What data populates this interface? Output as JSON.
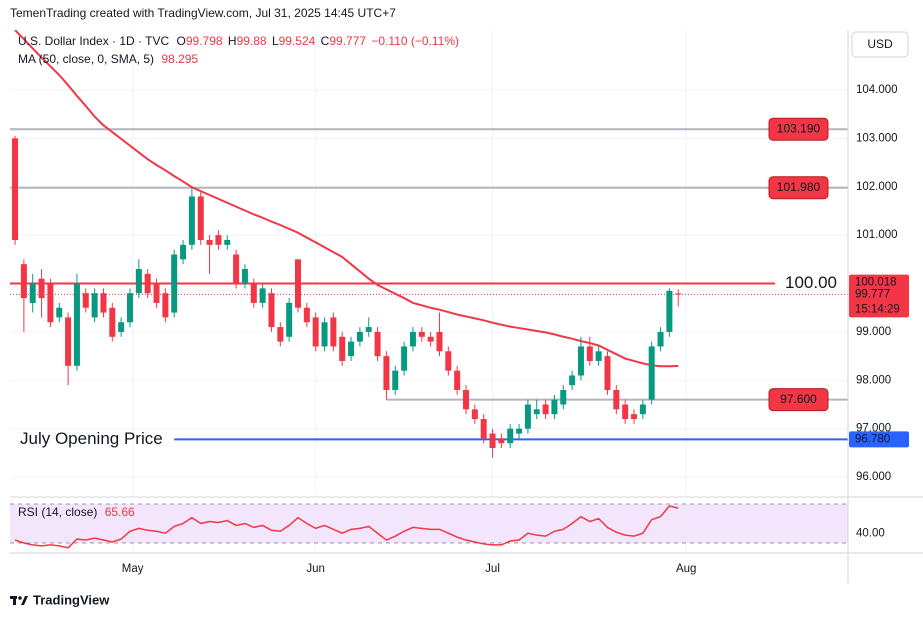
{
  "header": "TemenTrading created with TradingView.com, Jul 31, 2025 14:45 UTC+7",
  "footer": "TradingView",
  "chart_data": {
    "type": "candlestick",
    "title": "U.S. Dollar Index · 1D · TVC",
    "currency": "USD",
    "ohlc_labels": [
      "O",
      "H",
      "L",
      "C"
    ],
    "last": {
      "open": 99.798,
      "high": 99.88,
      "low": 99.524,
      "close": 99.777,
      "change": "−0.110 (−0.11%)"
    },
    "open": [
      103.0,
      100.4,
      99.6,
      100.1,
      100.0,
      99.3,
      99.3,
      98.3,
      99.8,
      99.3,
      99.8,
      99.5,
      99.0,
      99.2,
      99.8,
      100.2,
      100.0,
      99.8,
      99.4,
      100.5,
      100.8,
      101.8,
      100.9,
      101.0,
      100.8,
      100.6,
      100.0,
      100.0,
      99.6,
      99.8,
      99.1,
      98.9,
      100.5,
      99.5,
      99.3,
      98.7,
      99.3,
      98.9,
      98.5,
      98.8,
      99.0,
      99.0,
      98.5,
      97.8,
      98.2,
      98.7,
      99.0,
      98.9,
      99.0,
      98.6,
      98.2,
      97.8,
      97.4,
      97.2,
      96.9,
      96.8,
      96.7,
      96.9,
      97.0,
      97.3,
      97.5,
      97.3,
      97.5,
      97.9,
      98.1,
      98.7,
      98.4,
      98.5,
      97.8,
      97.5,
      97.3,
      97.3,
      97.6,
      98.7,
      99.0,
      99.798
    ],
    "high": [
      103.05,
      100.5,
      100.2,
      100.3,
      100.1,
      99.6,
      99.4,
      100.2,
      99.9,
      99.9,
      99.9,
      99.6,
      99.3,
      99.9,
      100.5,
      100.3,
      100.1,
      99.9,
      100.7,
      100.9,
      102.0,
      101.9,
      101.0,
      101.1,
      101.0,
      100.7,
      100.4,
      100.1,
      100.0,
      99.9,
      99.2,
      99.7,
      100.5,
      99.6,
      99.4,
      99.3,
      99.4,
      99.0,
      98.9,
      99.1,
      99.3,
      99.1,
      98.6,
      98.3,
      98.8,
      99.1,
      99.1,
      99.0,
      99.4,
      98.7,
      98.3,
      97.9,
      97.5,
      97.3,
      97.0,
      96.9,
      97.1,
      97.1,
      97.6,
      97.6,
      97.6,
      97.7,
      97.9,
      98.2,
      98.9,
      98.9,
      98.7,
      98.6,
      97.9,
      97.6,
      97.4,
      97.6,
      98.8,
      99.1,
      99.9,
      99.88
    ],
    "low": [
      100.8,
      99.0,
      99.4,
      99.3,
      99.1,
      99.2,
      97.9,
      98.2,
      99.4,
      99.2,
      99.3,
      98.8,
      98.9,
      99.1,
      99.7,
      99.7,
      99.5,
      99.2,
      99.3,
      100.4,
      100.7,
      100.8,
      100.2,
      100.7,
      100.7,
      99.9,
      99.9,
      99.5,
      99.5,
      99.0,
      98.7,
      98.8,
      99.4,
      99.1,
      98.6,
      98.6,
      98.6,
      98.3,
      98.4,
      98.7,
      98.9,
      98.4,
      97.6,
      97.7,
      98.1,
      98.6,
      98.8,
      98.7,
      98.5,
      98.1,
      97.7,
      97.3,
      97.1,
      96.7,
      96.4,
      96.6,
      96.6,
      96.8,
      96.9,
      97.2,
      97.2,
      97.2,
      97.4,
      97.8,
      98.0,
      98.3,
      98.3,
      97.7,
      97.3,
      97.1,
      97.1,
      97.2,
      97.5,
      98.6,
      98.9,
      99.524
    ],
    "close": [
      100.9,
      99.7,
      100.0,
      99.7,
      99.2,
      99.5,
      98.3,
      100.0,
      99.5,
      99.8,
      99.4,
      98.9,
      99.2,
      99.8,
      100.3,
      99.8,
      99.6,
      99.3,
      100.6,
      100.8,
      101.8,
      100.9,
      100.8,
      100.8,
      100.9,
      100.0,
      100.3,
      99.6,
      99.9,
      99.1,
      98.8,
      99.6,
      99.5,
      99.2,
      98.7,
      99.2,
      98.7,
      98.4,
      98.8,
      99.0,
      99.1,
      98.5,
      97.8,
      98.2,
      98.7,
      99.0,
      98.9,
      98.8,
      98.6,
      98.2,
      97.8,
      97.4,
      97.2,
      96.8,
      96.6,
      96.7,
      97.0,
      97.0,
      97.5,
      97.4,
      97.3,
      97.6,
      97.8,
      98.1,
      98.7,
      98.4,
      98.6,
      97.8,
      97.4,
      97.2,
      97.2,
      97.5,
      98.7,
      99.0,
      99.85,
      99.777
    ],
    "up_color": "#089981",
    "down_color": "#f23645",
    "xlim": [
      -0.57,
      94.2
    ],
    "xticks": [
      {
        "value": 13.3,
        "label": "May"
      },
      {
        "value": 34.0,
        "label": "Jun"
      },
      {
        "value": 54.0,
        "label": "Jul"
      },
      {
        "value": 75.9,
        "label": "Aug"
      }
    ],
    "ylim": [
      95.63,
      105.24
    ],
    "yticks": [
      {
        "value": 96,
        "label": "96.000"
      },
      {
        "value": 97,
        "label": "97.000"
      },
      {
        "value": 98,
        "label": "98.000"
      },
      {
        "value": 99,
        "label": "99.000"
      },
      {
        "value": 101,
        "label": "101.000"
      },
      {
        "value": 102,
        "label": "102.000"
      },
      {
        "value": 103,
        "label": "103.000"
      },
      {
        "value": 104,
        "label": "104.000"
      }
    ],
    "grid": true,
    "ma": {
      "name": "MA (50, close, 0, SMA, 5)",
      "value": 98.295,
      "color": "#f23645",
      "values": [
        105.24,
        105.05,
        104.86,
        104.67,
        104.49,
        104.31,
        104.1,
        103.88,
        103.67,
        103.45,
        103.27,
        103.13,
        102.99,
        102.85,
        102.71,
        102.57,
        102.45,
        102.34,
        102.22,
        102.11,
        101.99,
        101.91,
        101.83,
        101.75,
        101.67,
        101.59,
        101.51,
        101.43,
        101.36,
        101.28,
        101.21,
        101.13,
        101.05,
        100.95,
        100.85,
        100.75,
        100.65,
        100.55,
        100.4,
        100.25,
        100.1,
        99.97,
        99.88,
        99.79,
        99.7,
        99.6,
        99.55,
        99.5,
        99.46,
        99.41,
        99.36,
        99.32,
        99.28,
        99.24,
        99.19,
        99.15,
        99.11,
        99.08,
        99.05,
        99.02,
        98.99,
        98.95,
        98.9,
        98.86,
        98.81,
        98.77,
        98.72,
        98.63,
        98.54,
        98.45,
        98.4,
        98.35,
        98.31,
        98.29,
        98.29,
        98.295
      ]
    },
    "levels": [
      {
        "value": 103.19,
        "label": "103.190",
        "color": "#b2b5be",
        "tag_color": "#f23645",
        "style": "box"
      },
      {
        "value": 101.98,
        "label": "101.980",
        "color": "#b2b5be",
        "tag_color": "#f23645",
        "style": "box"
      },
      {
        "value": 100,
        "label": "100.00",
        "color": "#f23645",
        "style": "text"
      },
      {
        "value": 97.6,
        "label": "97.600",
        "color": "#b2b5be",
        "tag_color": "#f23645",
        "style": "box",
        "start": 42
      },
      {
        "value": 96.78,
        "label": "July Opening Price",
        "color": "#2962ff",
        "style": "left",
        "start": 18
      }
    ],
    "axis_tags": [
      {
        "value": 100.018,
        "label": "100.018",
        "color": "#f23645"
      },
      {
        "value": 96.78,
        "label": "96.780",
        "color": "#2962ff"
      }
    ],
    "price_tag": {
      "value": 99.777,
      "label": "99.777",
      "countdown": "15:14:29",
      "color": "#f23645"
    },
    "rsi": {
      "name": "RSI (14, close)",
      "value": 65.66,
      "color": "#f23645",
      "ylim": [
        19.7,
        74.1
      ],
      "yticks": [
        {
          "value": 40,
          "label": "40.00"
        }
      ],
      "bands": [
        30,
        70
      ],
      "band_color": "#f3e5fb",
      "values": [
        33,
        30,
        28,
        27,
        28,
        27,
        25,
        34,
        33,
        35,
        33,
        31,
        34,
        42,
        45,
        43,
        42,
        40,
        47,
        50,
        56,
        50,
        52,
        51,
        53,
        48,
        50,
        46,
        48,
        43,
        42,
        48,
        56,
        50,
        45,
        48,
        44,
        40,
        44,
        45,
        47,
        40,
        33,
        37,
        42,
        46,
        45,
        44,
        44,
        40,
        36,
        33,
        31,
        29,
        28,
        28,
        32,
        33,
        40,
        38,
        37,
        42,
        44,
        50,
        57,
        52,
        55,
        46,
        41,
        38,
        37,
        40,
        54,
        57,
        68,
        65.66
      ]
    }
  }
}
